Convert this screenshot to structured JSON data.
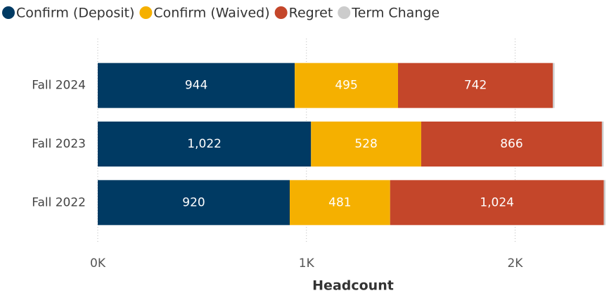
{
  "chart_data": {
    "type": "stacked-bar-horizontal",
    "categories": [
      "Fall 2024",
      "Fall 2023",
      "Fall 2022"
    ],
    "series": [
      {
        "name": "Confirm (Deposit)",
        "color": "#003a63",
        "values": [
          944,
          1022,
          920
        ],
        "value_labels": [
          "944",
          "1,022",
          "920"
        ]
      },
      {
        "name": "Confirm (Waived)",
        "color": "#f5b000",
        "values": [
          495,
          528,
          481
        ],
        "value_labels": [
          "495",
          "528",
          "481"
        ]
      },
      {
        "name": "Regret",
        "color": "#c4462a",
        "values": [
          742,
          866,
          1024
        ],
        "value_labels": [
          "742",
          "866",
          "1,024"
        ]
      },
      {
        "name": "Term Change",
        "color": "#cccccc",
        "values": [
          8,
          8,
          8
        ]
      }
    ],
    "xlim": [
      0,
      2450
    ],
    "xticks": [
      {
        "value": 0,
        "label": "0K"
      },
      {
        "value": 1000,
        "label": "1K"
      },
      {
        "value": 2000,
        "label": "2K"
      }
    ],
    "xlabel": "Headcount",
    "grid": true,
    "legend": "top"
  }
}
